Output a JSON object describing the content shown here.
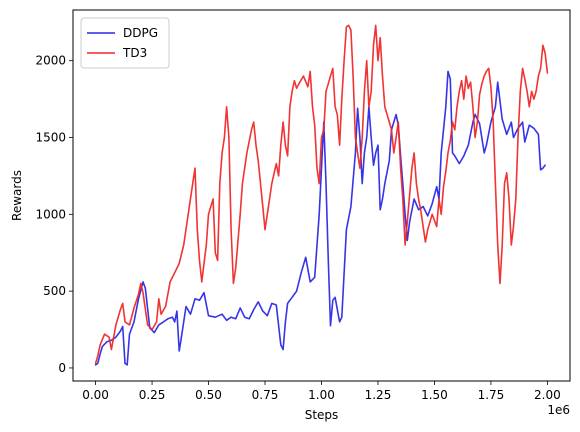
{
  "chart_data": {
    "type": "line",
    "title": "",
    "xlabel": "Steps",
    "ylabel": "Rewards",
    "x_offset_label": "1e6",
    "xlim": [
      -0.1,
      2.1
    ],
    "ylim": [
      -85,
      2330
    ],
    "x_ticks": [
      0.0,
      0.25,
      0.5,
      0.75,
      1.0,
      1.25,
      1.5,
      1.75,
      2.0
    ],
    "x_tick_labels": [
      "0.00",
      "0.25",
      "0.50",
      "0.75",
      "1.00",
      "1.25",
      "1.50",
      "1.75",
      "2.00"
    ],
    "y_ticks": [
      0,
      500,
      1000,
      1500,
      2000
    ],
    "y_tick_labels": [
      "0",
      "500",
      "1000",
      "1500",
      "2000"
    ],
    "grid": false,
    "legend_position": "top-left",
    "series": [
      {
        "name": "DDPG",
        "color": "#2a2ae6",
        "points": [
          [
            0.0,
            20
          ],
          [
            0.01,
            30
          ],
          [
            0.02,
            90
          ],
          [
            0.03,
            140
          ],
          [
            0.05,
            170
          ],
          [
            0.07,
            180
          ],
          [
            0.09,
            200
          ],
          [
            0.11,
            240
          ],
          [
            0.12,
            270
          ],
          [
            0.13,
            30
          ],
          [
            0.14,
            20
          ],
          [
            0.15,
            220
          ],
          [
            0.17,
            300
          ],
          [
            0.19,
            450
          ],
          [
            0.21,
            560
          ],
          [
            0.22,
            520
          ],
          [
            0.24,
            260
          ],
          [
            0.26,
            230
          ],
          [
            0.28,
            280
          ],
          [
            0.3,
            300
          ],
          [
            0.32,
            320
          ],
          [
            0.34,
            330
          ],
          [
            0.35,
            300
          ],
          [
            0.36,
            370
          ],
          [
            0.37,
            110
          ],
          [
            0.38,
            200
          ],
          [
            0.4,
            400
          ],
          [
            0.42,
            350
          ],
          [
            0.44,
            450
          ],
          [
            0.46,
            440
          ],
          [
            0.48,
            490
          ],
          [
            0.5,
            340
          ],
          [
            0.53,
            330
          ],
          [
            0.56,
            350
          ],
          [
            0.58,
            310
          ],
          [
            0.6,
            330
          ],
          [
            0.62,
            320
          ],
          [
            0.64,
            390
          ],
          [
            0.66,
            330
          ],
          [
            0.68,
            320
          ],
          [
            0.7,
            380
          ],
          [
            0.72,
            430
          ],
          [
            0.74,
            370
          ],
          [
            0.76,
            340
          ],
          [
            0.78,
            420
          ],
          [
            0.8,
            410
          ],
          [
            0.82,
            150
          ],
          [
            0.83,
            120
          ],
          [
            0.84,
            300
          ],
          [
            0.85,
            420
          ],
          [
            0.87,
            460
          ],
          [
            0.89,
            500
          ],
          [
            0.91,
            620
          ],
          [
            0.93,
            720
          ],
          [
            0.95,
            560
          ],
          [
            0.97,
            590
          ],
          [
            0.99,
            1000
          ],
          [
            1.0,
            1300
          ],
          [
            1.01,
            1600
          ],
          [
            1.02,
            1200
          ],
          [
            1.03,
            700
          ],
          [
            1.04,
            275
          ],
          [
            1.05,
            440
          ],
          [
            1.06,
            460
          ],
          [
            1.08,
            300
          ],
          [
            1.09,
            330
          ],
          [
            1.11,
            900
          ],
          [
            1.13,
            1050
          ],
          [
            1.15,
            1400
          ],
          [
            1.16,
            1690
          ],
          [
            1.17,
            1500
          ],
          [
            1.18,
            1200
          ],
          [
            1.19,
            1400
          ],
          [
            1.2,
            1500
          ],
          [
            1.21,
            1700
          ],
          [
            1.22,
            1500
          ],
          [
            1.23,
            1320
          ],
          [
            1.24,
            1400
          ],
          [
            1.25,
            1450
          ],
          [
            1.26,
            1030
          ],
          [
            1.27,
            1100
          ],
          [
            1.28,
            1200
          ],
          [
            1.3,
            1350
          ],
          [
            1.31,
            1550
          ],
          [
            1.33,
            1650
          ],
          [
            1.34,
            1580
          ],
          [
            1.35,
            1380
          ],
          [
            1.36,
            1200
          ],
          [
            1.37,
            1000
          ],
          [
            1.38,
            830
          ],
          [
            1.39,
            950
          ],
          [
            1.41,
            1100
          ],
          [
            1.43,
            1030
          ],
          [
            1.45,
            1050
          ],
          [
            1.47,
            990
          ],
          [
            1.49,
            1070
          ],
          [
            1.51,
            1180
          ],
          [
            1.52,
            1100
          ],
          [
            1.53,
            1400
          ],
          [
            1.55,
            1700
          ],
          [
            1.56,
            1930
          ],
          [
            1.57,
            1880
          ],
          [
            1.58,
            1400
          ],
          [
            1.59,
            1380
          ],
          [
            1.61,
            1330
          ],
          [
            1.63,
            1380
          ],
          [
            1.65,
            1450
          ],
          [
            1.67,
            1600
          ],
          [
            1.68,
            1650
          ],
          [
            1.7,
            1590
          ],
          [
            1.72,
            1400
          ],
          [
            1.73,
            1450
          ],
          [
            1.75,
            1600
          ],
          [
            1.77,
            1700
          ],
          [
            1.78,
            1860
          ],
          [
            1.8,
            1620
          ],
          [
            1.82,
            1520
          ],
          [
            1.84,
            1600
          ],
          [
            1.85,
            1500
          ],
          [
            1.87,
            1560
          ],
          [
            1.89,
            1600
          ],
          [
            1.9,
            1470
          ],
          [
            1.92,
            1580
          ],
          [
            1.94,
            1560
          ],
          [
            1.96,
            1520
          ],
          [
            1.97,
            1290
          ],
          [
            1.98,
            1300
          ],
          [
            1.99,
            1320
          ]
        ]
      },
      {
        "name": "TD3",
        "color": "#f02828",
        "points": [
          [
            0.0,
            30
          ],
          [
            0.01,
            80
          ],
          [
            0.02,
            150
          ],
          [
            0.04,
            220
          ],
          [
            0.06,
            200
          ],
          [
            0.07,
            120
          ],
          [
            0.09,
            280
          ],
          [
            0.11,
            380
          ],
          [
            0.12,
            420
          ],
          [
            0.13,
            300
          ],
          [
            0.15,
            280
          ],
          [
            0.17,
            390
          ],
          [
            0.19,
            480
          ],
          [
            0.2,
            550
          ],
          [
            0.21,
            490
          ],
          [
            0.23,
            280
          ],
          [
            0.25,
            250
          ],
          [
            0.27,
            300
          ],
          [
            0.28,
            450
          ],
          [
            0.29,
            350
          ],
          [
            0.31,
            400
          ],
          [
            0.33,
            560
          ],
          [
            0.35,
            620
          ],
          [
            0.37,
            680
          ],
          [
            0.39,
            800
          ],
          [
            0.41,
            1000
          ],
          [
            0.43,
            1200
          ],
          [
            0.44,
            1300
          ],
          [
            0.45,
            900
          ],
          [
            0.46,
            700
          ],
          [
            0.47,
            560
          ],
          [
            0.48,
            680
          ],
          [
            0.49,
            800
          ],
          [
            0.5,
            1000
          ],
          [
            0.51,
            1050
          ],
          [
            0.52,
            1100
          ],
          [
            0.53,
            750
          ],
          [
            0.54,
            700
          ],
          [
            0.55,
            1200
          ],
          [
            0.56,
            1400
          ],
          [
            0.57,
            1500
          ],
          [
            0.58,
            1700
          ],
          [
            0.59,
            1500
          ],
          [
            0.6,
            900
          ],
          [
            0.61,
            550
          ],
          [
            0.62,
            650
          ],
          [
            0.64,
            1000
          ],
          [
            0.65,
            1200
          ],
          [
            0.67,
            1400
          ],
          [
            0.69,
            1550
          ],
          [
            0.7,
            1600
          ],
          [
            0.71,
            1450
          ],
          [
            0.72,
            1350
          ],
          [
            0.74,
            1050
          ],
          [
            0.75,
            900
          ],
          [
            0.76,
            1000
          ],
          [
            0.78,
            1200
          ],
          [
            0.8,
            1330
          ],
          [
            0.81,
            1250
          ],
          [
            0.82,
            1450
          ],
          [
            0.83,
            1600
          ],
          [
            0.84,
            1450
          ],
          [
            0.85,
            1380
          ],
          [
            0.86,
            1700
          ],
          [
            0.87,
            1800
          ],
          [
            0.88,
            1870
          ],
          [
            0.89,
            1820
          ],
          [
            0.9,
            1850
          ],
          [
            0.92,
            1900
          ],
          [
            0.94,
            1830
          ],
          [
            0.95,
            1930
          ],
          [
            0.96,
            1700
          ],
          [
            0.97,
            1580
          ],
          [
            0.98,
            1300
          ],
          [
            0.99,
            1200
          ],
          [
            1.0,
            1500
          ],
          [
            1.01,
            1550
          ],
          [
            1.02,
            1800
          ],
          [
            1.03,
            1850
          ],
          [
            1.04,
            1900
          ],
          [
            1.05,
            1950
          ],
          [
            1.06,
            1700
          ],
          [
            1.07,
            1650
          ],
          [
            1.08,
            1450
          ],
          [
            1.09,
            1750
          ],
          [
            1.1,
            2000
          ],
          [
            1.11,
            2220
          ],
          [
            1.12,
            2230
          ],
          [
            1.13,
            2200
          ],
          [
            1.14,
            1900
          ],
          [
            1.15,
            1500
          ],
          [
            1.16,
            1400
          ],
          [
            1.17,
            1300
          ],
          [
            1.18,
            1500
          ],
          [
            1.19,
            1800
          ],
          [
            1.2,
            2000
          ],
          [
            1.21,
            1700
          ],
          [
            1.22,
            1800
          ],
          [
            1.23,
            2100
          ],
          [
            1.24,
            2230
          ],
          [
            1.25,
            2000
          ],
          [
            1.26,
            2150
          ],
          [
            1.27,
            1900
          ],
          [
            1.28,
            1700
          ],
          [
            1.3,
            1600
          ],
          [
            1.31,
            1550
          ],
          [
            1.32,
            1400
          ],
          [
            1.33,
            1500
          ],
          [
            1.34,
            1600
          ],
          [
            1.35,
            1300
          ],
          [
            1.36,
            1100
          ],
          [
            1.37,
            800
          ],
          [
            1.38,
            950
          ],
          [
            1.4,
            1300
          ],
          [
            1.41,
            1400
          ],
          [
            1.42,
            1200
          ],
          [
            1.43,
            1100
          ],
          [
            1.44,
            1020
          ],
          [
            1.46,
            820
          ],
          [
            1.47,
            900
          ],
          [
            1.49,
            1000
          ],
          [
            1.51,
            920
          ],
          [
            1.52,
            1100
          ],
          [
            1.53,
            1000
          ],
          [
            1.54,
            1180
          ],
          [
            1.55,
            1280
          ],
          [
            1.56,
            1400
          ],
          [
            1.57,
            1480
          ],
          [
            1.58,
            1600
          ],
          [
            1.59,
            1550
          ],
          [
            1.6,
            1700
          ],
          [
            1.61,
            1800
          ],
          [
            1.62,
            1870
          ],
          [
            1.63,
            1750
          ],
          [
            1.64,
            1900
          ],
          [
            1.65,
            1820
          ],
          [
            1.66,
            1860
          ],
          [
            1.67,
            1700
          ],
          [
            1.68,
            1500
          ],
          [
            1.69,
            1600
          ],
          [
            1.7,
            1780
          ],
          [
            1.71,
            1850
          ],
          [
            1.72,
            1900
          ],
          [
            1.73,
            1930
          ],
          [
            1.74,
            1950
          ],
          [
            1.75,
            1830
          ],
          [
            1.76,
            1600
          ],
          [
            1.77,
            1200
          ],
          [
            1.78,
            800
          ],
          [
            1.79,
            550
          ],
          [
            1.8,
            800
          ],
          [
            1.81,
            1200
          ],
          [
            1.82,
            1270
          ],
          [
            1.83,
            1100
          ],
          [
            1.84,
            800
          ],
          [
            1.85,
            920
          ],
          [
            1.86,
            1100
          ],
          [
            1.87,
            1500
          ],
          [
            1.88,
            1800
          ],
          [
            1.89,
            1950
          ],
          [
            1.9,
            1880
          ],
          [
            1.91,
            1800
          ],
          [
            1.92,
            1700
          ],
          [
            1.93,
            1800
          ],
          [
            1.94,
            1750
          ],
          [
            1.95,
            1800
          ],
          [
            1.96,
            1900
          ],
          [
            1.97,
            1950
          ],
          [
            1.98,
            2100
          ],
          [
            1.99,
            2050
          ],
          [
            2.0,
            1920
          ]
        ]
      }
    ]
  }
}
